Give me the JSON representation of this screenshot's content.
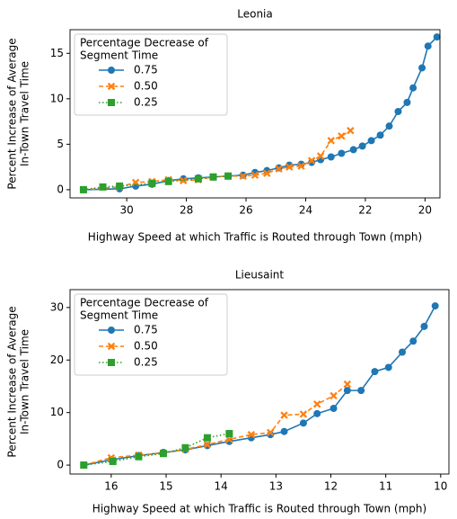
{
  "chart_data": [
    {
      "type": "line",
      "title": "Leonia",
      "xlabel": "Highway Speed at which Traffic is Routed through Town (mph)",
      "ylabel": [
        "Percent Increase of Average",
        "In-Town Travel Time"
      ],
      "legend_title": [
        "Percentage Decrease of",
        "Segment Time"
      ],
      "legend": "upper left",
      "xlim": [
        31.9,
        19.5
      ],
      "xticks": [
        30,
        28,
        26,
        24,
        22,
        20
      ],
      "ylim": [
        -0.9,
        17.6
      ],
      "yticks": [
        0,
        5,
        10,
        15
      ],
      "series": [
        {
          "name": "0.75",
          "color": "#1f77b4",
          "marker": "circle",
          "linestyle": "solid",
          "x": [
            31.45,
            30.24,
            29.7,
            29.15,
            28.6,
            28.1,
            27.6,
            27.1,
            26.6,
            26.1,
            25.7,
            25.3,
            24.9,
            24.55,
            24.15,
            23.8,
            23.5,
            23.15,
            22.8,
            22.4,
            22.1,
            21.8,
            21.5,
            21.2,
            20.9,
            20.6,
            20.4,
            20.1,
            19.9,
            19.6
          ],
          "values": [
            0,
            0.1,
            0.4,
            0.6,
            1.0,
            1.2,
            1.3,
            1.4,
            1.5,
            1.6,
            1.9,
            2.1,
            2.4,
            2.7,
            2.8,
            3.0,
            3.3,
            3.6,
            4.0,
            4.4,
            4.8,
            5.4,
            6.0,
            7.0,
            8.6,
            9.6,
            11.2,
            13.4,
            15.8,
            16.8
          ]
        },
        {
          "name": "0.50",
          "color": "#ff7f0e",
          "marker": "x",
          "linestyle": "dashed",
          "x": [
            31.45,
            30.24,
            29.7,
            29.15,
            28.6,
            28.1,
            27.6,
            27.1,
            26.6,
            26.1,
            25.7,
            25.3,
            24.9,
            24.55,
            24.15,
            23.8,
            23.5,
            23.15,
            22.8,
            22.5
          ],
          "values": [
            0,
            0.3,
            0.8,
            0.9,
            1.1,
            1.0,
            1.1,
            1.4,
            1.5,
            1.5,
            1.6,
            1.8,
            2.3,
            2.5,
            2.6,
            3.2,
            3.7,
            5.4,
            5.9,
            6.5
          ]
        },
        {
          "name": "0.25",
          "color": "#2ca02c",
          "marker": "square",
          "linestyle": "dotted",
          "x": [
            31.45,
            30.8,
            30.24,
            29.15,
            28.6,
            27.6,
            27.1,
            26.6
          ],
          "values": [
            0,
            0.3,
            0.4,
            0.7,
            0.9,
            1.2,
            1.4,
            1.5
          ]
        }
      ]
    },
    {
      "type": "line",
      "title": "Lieusaint",
      "xlabel": "Highway Speed at which Traffic is Routed through Town (mph)",
      "ylabel": [
        "Percent Increase of Average",
        "In-Town Travel Time"
      ],
      "legend_title": [
        "Percentage Decrease of",
        "Segment Time"
      ],
      "legend": "upper left",
      "xlim": [
        16.75,
        9.85
      ],
      "xticks": [
        16,
        15,
        14,
        13,
        12,
        11,
        10
      ],
      "ylim": [
        -1.7,
        33.4
      ],
      "yticks": [
        0,
        10,
        20,
        30
      ],
      "series": [
        {
          "name": "0.75",
          "color": "#1f77b4",
          "marker": "circle",
          "linestyle": "solid",
          "x": [
            16.5,
            16.0,
            15.5,
            15.05,
            14.65,
            14.25,
            13.85,
            13.45,
            13.1,
            12.85,
            12.5,
            12.25,
            11.95,
            11.7,
            11.45,
            11.2,
            10.95,
            10.7,
            10.5,
            10.3,
            10.1
          ],
          "values": [
            0,
            1.0,
            1.8,
            2.4,
            2.9,
            3.7,
            4.5,
            5.2,
            5.8,
            6.4,
            8.0,
            9.8,
            10.8,
            14.2,
            14.2,
            17.8,
            18.6,
            21.5,
            23.6,
            26.4,
            30.3
          ]
        },
        {
          "name": "0.50",
          "color": "#ff7f0e",
          "marker": "x",
          "linestyle": "dashed",
          "x": [
            16.5,
            16.0,
            15.5,
            15.05,
            14.65,
            14.25,
            13.85,
            13.45,
            13.1,
            12.85,
            12.5,
            12.25,
            11.95,
            11.7
          ],
          "values": [
            0,
            1.4,
            1.9,
            2.3,
            3.0,
            3.9,
            4.9,
            5.8,
            6.2,
            9.5,
            9.7,
            11.6,
            13.2,
            15.4
          ]
        },
        {
          "name": "0.25",
          "color": "#2ca02c",
          "marker": "square",
          "linestyle": "dotted",
          "x": [
            16.5,
            15.97,
            15.5,
            15.05,
            14.65,
            14.25,
            13.85
          ],
          "values": [
            0,
            0.7,
            1.6,
            2.2,
            3.3,
            5.2,
            6.0
          ]
        }
      ]
    }
  ]
}
